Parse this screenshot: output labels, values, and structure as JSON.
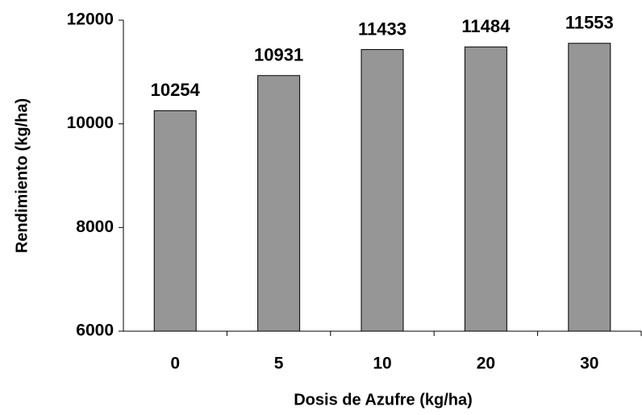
{
  "chart_data": {
    "type": "bar",
    "x_label": "Dosis de Azufre (kg/ha)",
    "y_label": "Rendimiento (kg/ha)",
    "categories": [
      "0",
      "5",
      "10",
      "20",
      "30"
    ],
    "values": [
      10254,
      10931,
      11433,
      11484,
      11553
    ],
    "color": "#969696",
    "ylim": [
      6000,
      12000
    ],
    "yticks": [
      6000,
      8000,
      10000,
      12000
    ],
    "grid": false
  }
}
